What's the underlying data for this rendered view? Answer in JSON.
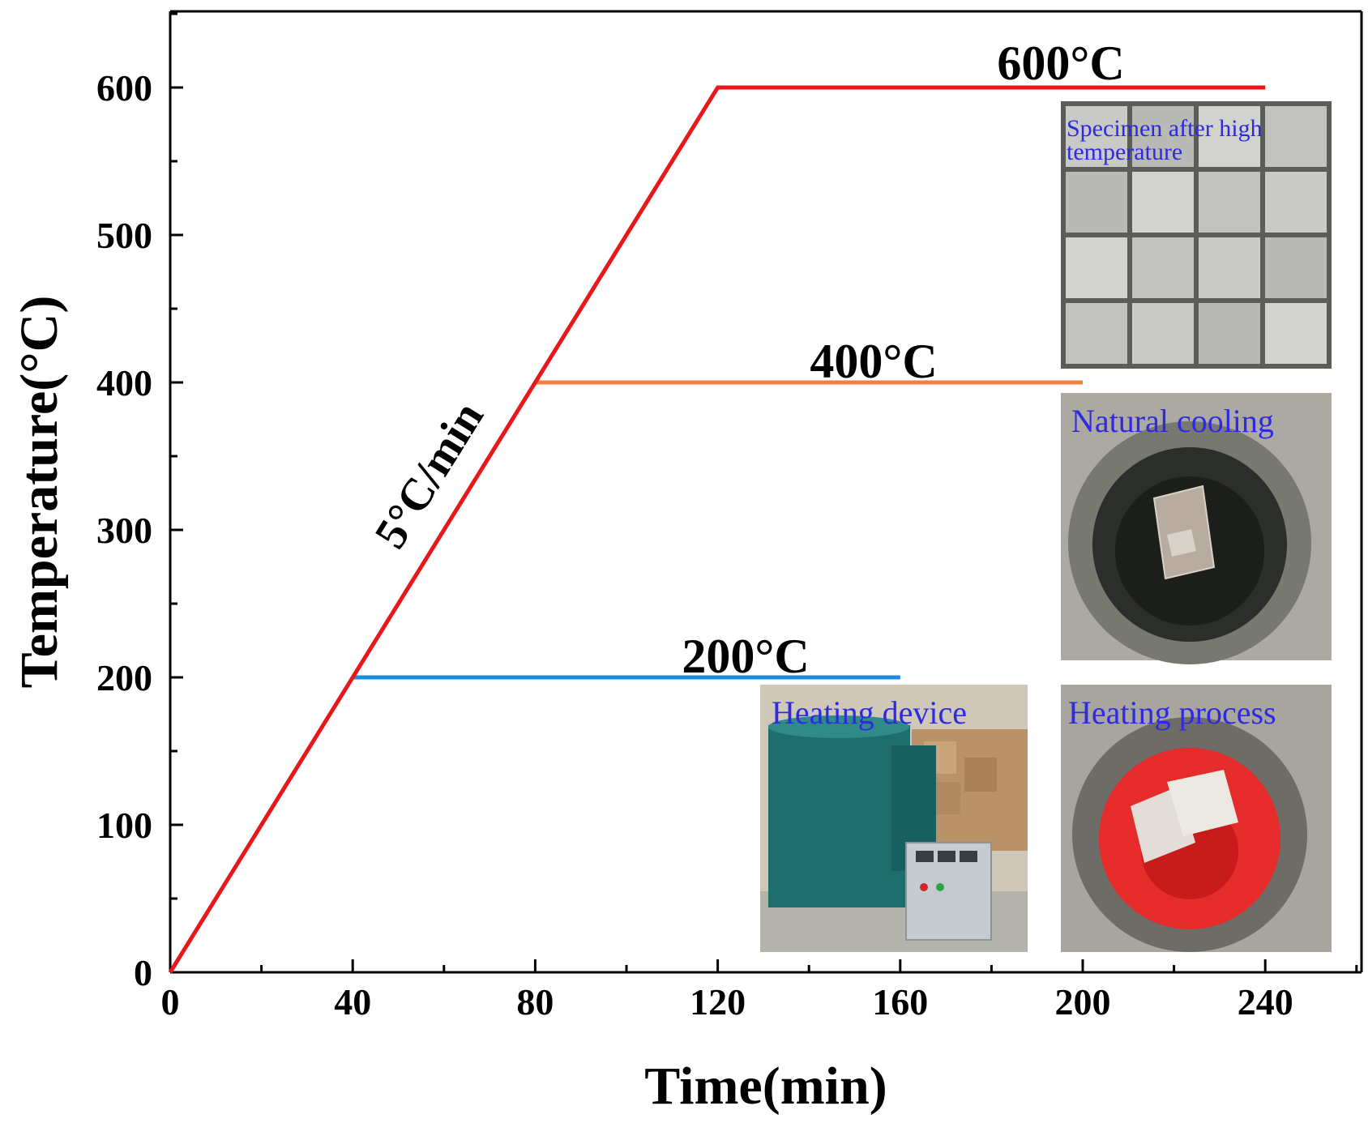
{
  "chart_data": {
    "type": "line",
    "xlabel": "Time(min)",
    "ylabel": "Temperature(°C)",
    "xlim": [
      0,
      260
    ],
    "ylim": [
      0,
      650
    ],
    "xticks": [
      0,
      40,
      80,
      120,
      160,
      200,
      240
    ],
    "yticks": [
      0,
      100,
      200,
      300,
      400,
      500,
      600
    ],
    "grid": false,
    "series": [
      {
        "color": "#e8171a",
        "x": [
          0,
          120,
          240
        ],
        "y": [
          0,
          600,
          600
        ]
      },
      {
        "color": "#f0813a",
        "x": [
          80,
          200
        ],
        "y": [
          400,
          400
        ]
      },
      {
        "color": "#1a8ce0",
        "x": [
          40,
          160
        ],
        "y": [
          200,
          200
        ]
      }
    ],
    "annotations": [
      {
        "text": "600°C"
      },
      {
        "text": "400°C"
      },
      {
        "text": "200°C"
      },
      {
        "text": "5°C/min"
      }
    ],
    "photos": [
      {
        "label": "Specimen after high temperature",
        "label_lines": [
          "Specimen after high",
          "temperature"
        ],
        "icon": "specimen-grid-photo"
      },
      {
        "label": "Natural cooling",
        "icon": "furnace-top-view-photo"
      },
      {
        "label": "Heating device",
        "icon": "heating-furnace-photo"
      },
      {
        "label": "Heating process",
        "icon": "glowing-furnace-photo"
      }
    ]
  }
}
